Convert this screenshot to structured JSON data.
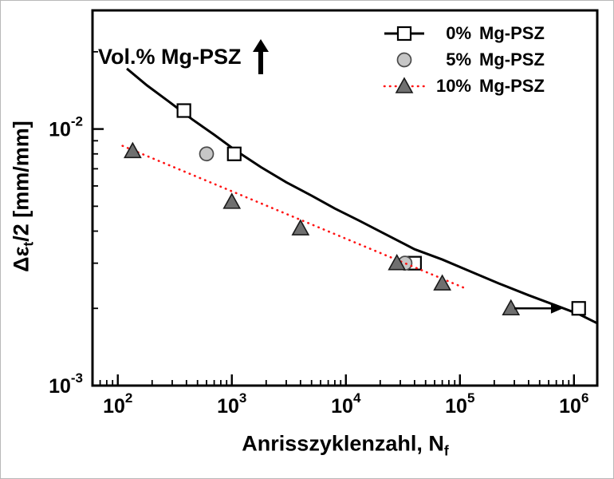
{
  "figure": {
    "background": "#ffffff",
    "y_axis_label": {
      "prefix": "Δε",
      "sub": "t",
      "suffix": "/2 [mm/mm]"
    },
    "x_axis_label": {
      "prefix": "Anrisszyklenzahl, N",
      "sub": "f"
    },
    "annotation": {
      "text": "Vol.% Mg-PSZ",
      "arrow": "up"
    }
  },
  "legend": {
    "items": [
      {
        "pct": "0%",
        "name": "Mg-PSZ"
      },
      {
        "pct": "5%",
        "name": "Mg-PSZ"
      },
      {
        "pct": "10%",
        "name": "Mg-PSZ"
      }
    ]
  },
  "chart_data": {
    "type": "scatter",
    "title": "",
    "xlabel": "Anrisszyklenzahl, N_f",
    "ylabel": "Δε_t/2 [mm/mm]",
    "x_scale": "log",
    "y_scale": "log",
    "xlim": [
      60,
      1600000
    ],
    "ylim": [
      0.001,
      0.029
    ],
    "x_ticks": [
      100,
      1000,
      10000,
      100000,
      1000000
    ],
    "y_ticks": [
      0.001,
      0.01
    ],
    "grid": false,
    "legend_position": "top-right",
    "annotation_text": "Vol.% Mg-PSZ (arrow up = increasing volume fraction)",
    "series": [
      {
        "name": "0% Mg-PSZ",
        "marker": "square",
        "marker_fill": "#ffffff",
        "marker_edge": "#000000",
        "line": "solid",
        "line_color": "#000000",
        "line_width": 3,
        "points": [
          [
            380,
            0.0118
          ],
          [
            1050,
            0.008
          ],
          [
            40000,
            0.003
          ],
          [
            1100000,
            0.002
          ]
        ],
        "curve": [
          [
            120,
            0.0172
          ],
          [
            180,
            0.0148
          ],
          [
            280,
            0.0128
          ],
          [
            450,
            0.0109
          ],
          [
            700,
            0.0095
          ],
          [
            1100,
            0.0082
          ],
          [
            1800,
            0.0071
          ],
          [
            3000,
            0.0062
          ],
          [
            5000,
            0.0055
          ],
          [
            8000,
            0.0049
          ],
          [
            13000,
            0.0044
          ],
          [
            22000,
            0.0039
          ],
          [
            40000,
            0.0034
          ],
          [
            70000,
            0.0031
          ],
          [
            120000,
            0.0028
          ],
          [
            220000,
            0.0025
          ],
          [
            400000,
            0.00225
          ],
          [
            700000,
            0.00205
          ],
          [
            1100000,
            0.0019
          ],
          [
            1600000,
            0.00175
          ]
        ]
      },
      {
        "name": "5% Mg-PSZ",
        "marker": "circle",
        "marker_fill": "#c6c6c6",
        "marker_edge": "#4a4a4a",
        "line": "none",
        "line_color": "",
        "line_width": 0,
        "points": [
          [
            600,
            0.008
          ],
          [
            33000,
            0.003
          ]
        ]
      },
      {
        "name": "10% Mg-PSZ",
        "marker": "triangle",
        "marker_fill": "#6f6f6f",
        "marker_edge": "#1a1a1a",
        "line": "dotted",
        "line_color": "#ff1414",
        "line_width": 2.6,
        "points": [
          [
            135,
            0.0082
          ],
          [
            1000,
            0.0052
          ],
          [
            4000,
            0.0041
          ],
          [
            28000,
            0.003
          ],
          [
            70000,
            0.0025
          ],
          [
            280000,
            0.002
          ]
        ],
        "curve": [
          [
            110,
            0.0086
          ],
          [
            110000,
            0.0024
          ]
        ]
      }
    ],
    "runout_arrow": {
      "x_from": 300000,
      "x_to": 800000,
      "y": 0.002
    }
  }
}
